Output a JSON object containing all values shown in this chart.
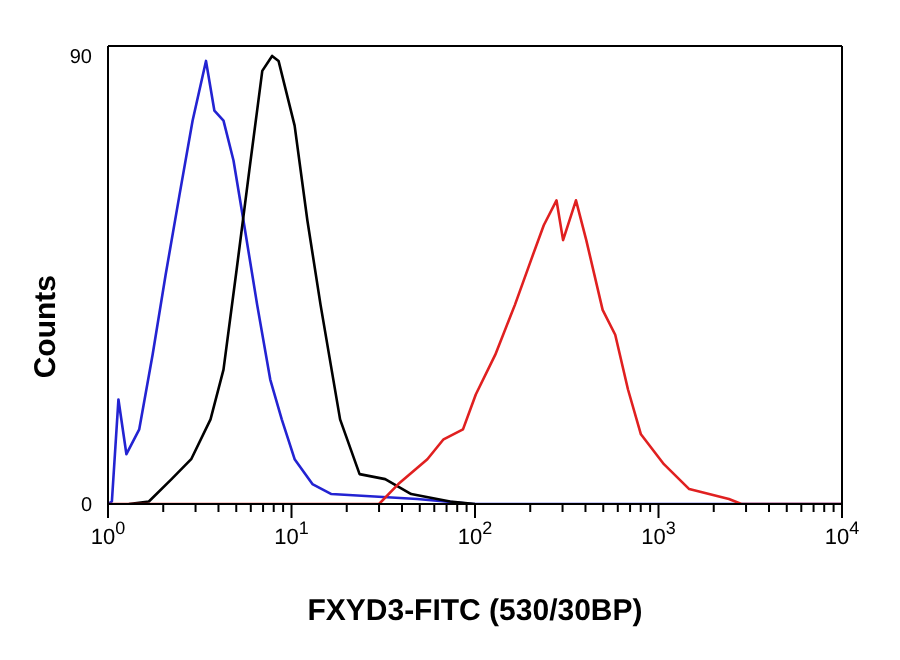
{
  "chart_data": {
    "type": "line",
    "xlabel": "FXYD3-FITC (530/30BP)",
    "ylabel": "Counts",
    "log": "x",
    "marker": "none",
    "line_style": "solid",
    "xlim": [
      1,
      10000
    ],
    "ylim": [
      0,
      92
    ],
    "xticks": [
      {
        "value": 1,
        "label": "10$^{0}$"
      },
      {
        "value": 2,
        "label": null
      },
      {
        "value": 3,
        "label": null
      },
      {
        "value": 4,
        "label": null
      },
      {
        "value": 5,
        "label": null
      },
      {
        "value": 6,
        "label": null
      },
      {
        "value": 7,
        "label": null
      },
      {
        "value": 8,
        "label": null
      },
      {
        "value": 9,
        "label": null
      },
      {
        "value": 10,
        "label": "10$^{1}$"
      },
      {
        "value": 20,
        "label": null
      },
      {
        "value": 30,
        "label": null
      },
      {
        "value": 40,
        "label": null
      },
      {
        "value": 50,
        "label": null
      },
      {
        "value": 60,
        "label": null
      },
      {
        "value": 70,
        "label": null
      },
      {
        "value": 80,
        "label": null
      },
      {
        "value": 90,
        "label": null
      },
      {
        "value": 100,
        "label": "10$^{2}$"
      },
      {
        "value": 200,
        "label": null
      },
      {
        "value": 300,
        "label": null
      },
      {
        "value": 400,
        "label": null
      },
      {
        "value": 500,
        "label": null
      },
      {
        "value": 600,
        "label": null
      },
      {
        "value": 700,
        "label": null
      },
      {
        "value": 800,
        "label": null
      },
      {
        "value": 900,
        "label": null
      },
      {
        "value": 1000,
        "label": "10$^{3}$"
      },
      {
        "value": 2000,
        "label": null
      },
      {
        "value": 3000,
        "label": null
      },
      {
        "value": 4000,
        "label": null
      },
      {
        "value": 5000,
        "label": null
      },
      {
        "value": 6000,
        "label": null
      },
      {
        "value": 7000,
        "label": null
      },
      {
        "value": 8000,
        "label": null
      },
      {
        "value": 9000,
        "label": null
      },
      {
        "value": 10000,
        "label": "10$^{4}$"
      }
    ],
    "yticks": [
      0,
      90
    ],
    "series": [
      {
        "color": "#2323d2",
        "x": [
          1,
          1.05,
          1.14,
          1.26,
          1.48,
          1.75,
          2.06,
          2.45,
          2.89,
          3.42,
          3.8,
          4.26,
          4.83,
          5.47,
          6.5,
          7.66,
          8.85,
          10.4,
          13,
          16.5,
          48.5,
          98,
          10000
        ],
        "values": [
          0,
          0.5,
          21,
          10,
          15,
          30,
          46,
          62,
          77,
          89,
          79,
          77,
          69,
          57,
          40,
          25,
          17,
          9,
          4,
          2,
          1,
          0,
          0
        ]
      },
      {
        "color": "#000000",
        "x": [
          1.3,
          1.67,
          2.22,
          2.84,
          3.62,
          4.26,
          5.02,
          5.89,
          6.93,
          7.84,
          8.5,
          10.4,
          12.2,
          14.4,
          18.4,
          23.5,
          32.4,
          44.9,
          73.2,
          100
        ],
        "values": [
          0,
          0.5,
          5,
          9,
          17,
          27,
          47,
          67,
          87,
          90,
          89,
          76,
          57,
          40,
          17,
          6,
          5,
          2,
          0.5,
          0
        ]
      },
      {
        "color": "#e02020",
        "x": [
          1,
          30,
          38.2,
          55,
          67.4,
          86,
          101,
          129,
          165,
          202,
          237,
          278,
          302,
          355,
          404,
          496,
          581,
          682,
          802,
          1070,
          1470,
          2420,
          2830,
          10000
        ],
        "values": [
          0,
          0,
          4,
          9,
          13,
          15,
          22,
          30,
          40,
          49,
          56,
          61,
          53,
          61,
          53,
          39,
          34,
          23,
          14,
          8,
          3,
          1,
          0,
          0
        ]
      }
    ]
  }
}
